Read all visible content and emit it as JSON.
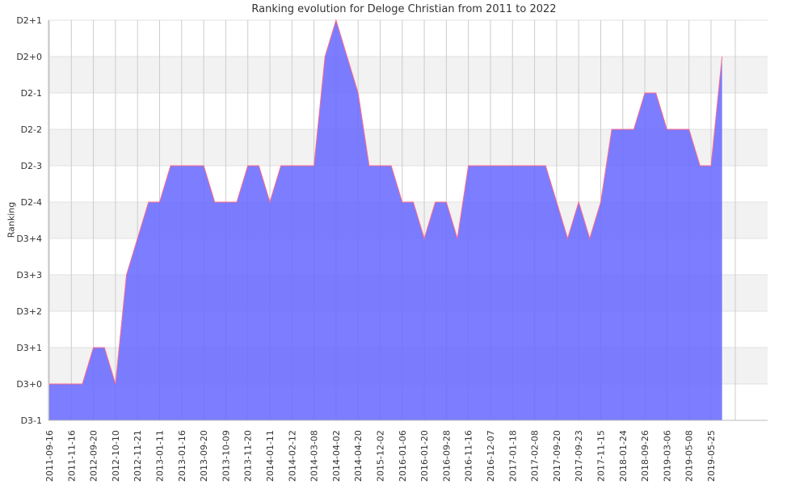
{
  "chart_data": {
    "type": "area",
    "title": "Ranking evolution for Deloge Christian from 2011 to 2022",
    "xlabel": "",
    "ylabel": "Ranking",
    "y_tick_labels": [
      "D3-1",
      "D3+0",
      "D3+1",
      "D3+2",
      "D3+3",
      "D3+4",
      "D2-4",
      "D2-3",
      "D2-2",
      "D2-1",
      "D2+0",
      "D2+1"
    ],
    "ylim": [
      0,
      11
    ],
    "x_tick_labels": [
      "2011-09-16",
      "2011-11-16",
      "2012-09-20",
      "2012-10-10",
      "2012-11-21",
      "2013-01-11",
      "2013-01-16",
      "2013-09-20",
      "2013-10-09",
      "2013-11-20",
      "2014-01-11",
      "2014-02-12",
      "2014-03-08",
      "2014-04-02",
      "2014-04-20",
      "2015-12-02",
      "2016-01-06",
      "2016-01-20",
      "2016-09-28",
      "2016-11-16",
      "2016-12-07",
      "2017-01-18",
      "2017-02-08",
      "2017-09-20",
      "2017-09-23",
      "2017-11-15",
      "2018-01-24",
      "2018-09-26",
      "2019-03-06",
      "2019-05-08",
      "2019-05-25"
    ],
    "values": [
      1,
      1,
      1,
      1,
      2,
      2,
      1,
      4,
      5,
      6,
      6,
      7,
      7,
      7,
      7,
      6,
      6,
      6,
      7,
      7,
      6,
      7,
      7,
      7,
      7,
      10,
      11,
      10,
      9,
      7,
      7,
      7,
      6,
      6,
      5,
      6,
      6,
      5,
      7,
      7,
      7,
      7,
      7,
      7,
      7,
      7,
      6,
      5,
      6,
      5,
      6,
      8,
      8,
      8,
      9,
      9,
      8,
      8,
      8,
      7,
      7,
      10
    ],
    "grid": true,
    "legend": "none",
    "colors": {
      "fill": "#6666ff",
      "line": "#ff6b8a",
      "band": "#f2f2f2",
      "grid": "#cccccc",
      "text": "#333333"
    }
  }
}
